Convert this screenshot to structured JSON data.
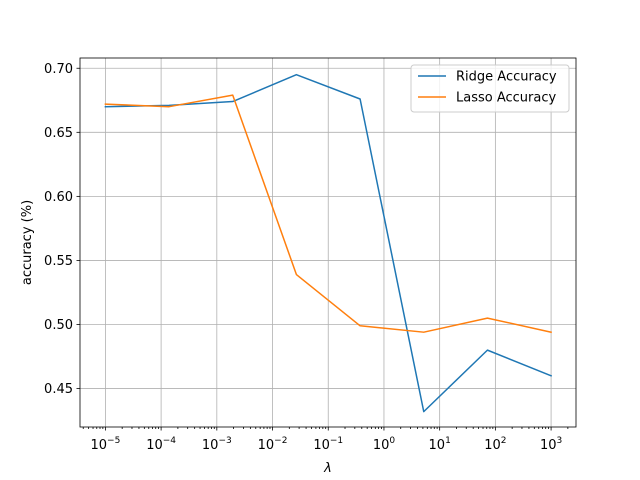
{
  "chart_data": {
    "type": "line",
    "title": "",
    "xlabel": "λ",
    "ylabel": "accuracy (%)",
    "xscale": "log",
    "xlim": [
      3.5e-06,
      2800
    ],
    "ylim": [
      0.42,
      0.708
    ],
    "grid": true,
    "legend_position": "top-right",
    "x_ticks": [
      {
        "value": 1e-05,
        "base": "10",
        "exp": "−5"
      },
      {
        "value": 0.0001,
        "base": "10",
        "exp": "−4"
      },
      {
        "value": 0.001,
        "base": "10",
        "exp": "−3"
      },
      {
        "value": 0.01,
        "base": "10",
        "exp": "−2"
      },
      {
        "value": 0.1,
        "base": "10",
        "exp": "−1"
      },
      {
        "value": 1,
        "base": "10",
        "exp": "0"
      },
      {
        "value": 10,
        "base": "10",
        "exp": "1"
      },
      {
        "value": 100,
        "base": "10",
        "exp": "2"
      },
      {
        "value": 1000,
        "base": "10",
        "exp": "3"
      }
    ],
    "y_ticks": [
      {
        "value": 0.45,
        "label": "0.45"
      },
      {
        "value": 0.5,
        "label": "0.50"
      },
      {
        "value": 0.55,
        "label": "0.55"
      },
      {
        "value": 0.6,
        "label": "0.60"
      },
      {
        "value": 0.65,
        "label": "0.65"
      },
      {
        "value": 0.7,
        "label": "0.70"
      }
    ],
    "x": [
      1e-05,
      0.000139,
      0.00193,
      0.0268,
      0.373,
      5.18,
      72.0,
      1000
    ],
    "series": [
      {
        "name": "Ridge Accuracy",
        "color": "#1f77b4",
        "values": [
          0.67,
          0.671,
          0.674,
          0.695,
          0.676,
          0.432,
          0.48,
          0.46
        ]
      },
      {
        "name": "Lasso Accuracy",
        "color": "#ff7f0e",
        "values": [
          0.672,
          0.67,
          0.679,
          0.539,
          0.499,
          0.494,
          0.505,
          0.494
        ]
      }
    ]
  }
}
